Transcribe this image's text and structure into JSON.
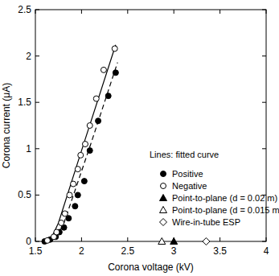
{
  "chart_data": {
    "type": "scatter",
    "x_label": "Corona voltage (kV)",
    "y_label": "Corona current (μA)",
    "annotation": "Lines: fitted curve",
    "xlim": [
      1.5,
      4
    ],
    "ylim": [
      0,
      2.5
    ],
    "xticks": [
      1.5,
      2,
      2.5,
      3,
      3.5,
      4
    ],
    "yticks": [
      0,
      0.5,
      1,
      1.5,
      2,
      2.5
    ],
    "legend": "bottom-right",
    "series": [
      {
        "type": "line",
        "line_style": "solid",
        "color": "#000000",
        "x": [
          1.62,
          1.68,
          1.75,
          2.0,
          2.37
        ],
        "values": [
          0,
          0.05,
          0.2,
          0.98,
          2.12
        ]
      },
      {
        "type": "line",
        "line_style": "dashed",
        "color": "#000000",
        "x": [
          1.64,
          1.72,
          1.8,
          2.1,
          2.39
        ],
        "values": [
          0,
          0.05,
          0.17,
          1.05,
          1.93
        ]
      },
      {
        "name": "Positive",
        "type": "scatter",
        "marker": "circle-filled",
        "color": "#000000",
        "x": [
          1.6,
          1.66,
          1.72,
          1.76,
          1.81,
          1.86,
          1.93,
          1.96,
          2.03,
          2.09,
          2.18,
          2.29,
          2.37
        ],
        "values": [
          0,
          0.02,
          0.05,
          0.1,
          0.15,
          0.25,
          0.38,
          0.5,
          0.65,
          0.98,
          1.3,
          1.57,
          1.82
        ]
      },
      {
        "name": "Negative",
        "type": "scatter",
        "marker": "circle-open",
        "color": "#000000",
        "x": [
          1.63,
          1.7,
          1.73,
          1.78,
          1.82,
          1.87,
          1.91,
          1.96,
          1.99,
          2.04,
          2.09,
          2.16,
          2.24,
          2.36
        ],
        "values": [
          0.01,
          0.05,
          0.1,
          0.2,
          0.3,
          0.5,
          0.62,
          0.78,
          0.93,
          1.05,
          1.25,
          1.54,
          1.85,
          2.08
        ]
      },
      {
        "name": "Point-to-plane (d = 0.02 m)",
        "type": "scatter",
        "marker": "triangle-filled",
        "color": "#000000",
        "x": [
          3.0
        ],
        "values": [
          0
        ]
      },
      {
        "name": "Point-to-plane (d = 0.015 m)",
        "type": "scatter",
        "marker": "triangle-open",
        "color": "#000000",
        "x": [
          2.87
        ],
        "values": [
          0
        ]
      },
      {
        "name": "Wire-in-tube ESP",
        "type": "scatter",
        "marker": "diamond-open",
        "color": "#000000",
        "x": [
          3.35
        ],
        "values": [
          0
        ]
      }
    ]
  }
}
